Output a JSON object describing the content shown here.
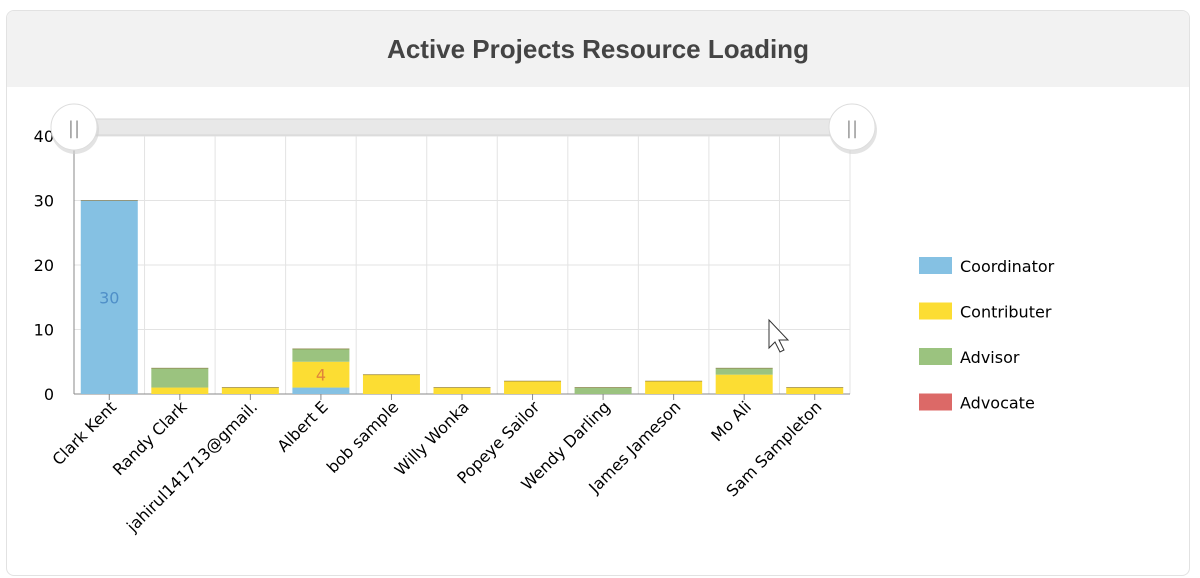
{
  "header": {
    "title": "Active Projects Resource Loading"
  },
  "colors": {
    "Coordinator": "#85c1e3",
    "Contributer": "#fcdd33",
    "Advisor": "#9bc37f",
    "Advocate": "#dc6967",
    "grid": "#e3e3e3",
    "scrollbar": "#e8e8e8"
  },
  "chart_data": {
    "type": "bar",
    "stacked": true,
    "title": "Active Projects Resource Loading",
    "xlabel": "",
    "ylabel": "",
    "ylim": [
      0,
      40
    ],
    "yticks": [
      0,
      10,
      20,
      30,
      40
    ],
    "grid": true,
    "legend_position": "right",
    "categories": [
      "Clark Kent",
      "Randy Clark",
      "jahirul141713@gmail.",
      "Albert E",
      "bob sample",
      "Willy Wonka",
      "Popeye Sailor",
      "Wendy Darling",
      "James Jameson",
      "Mo Ali",
      "Sam Sampleton"
    ],
    "series": [
      {
        "name": "Coordinator",
        "values": [
          30,
          0,
          0,
          1,
          0,
          0,
          0,
          0,
          0,
          0,
          0
        ]
      },
      {
        "name": "Contributer",
        "values": [
          0,
          1,
          1,
          4,
          3,
          1,
          2,
          0,
          2,
          3,
          1
        ]
      },
      {
        "name": "Advisor",
        "values": [
          0,
          3,
          0,
          2,
          0,
          0,
          0,
          1,
          0,
          1,
          0
        ]
      },
      {
        "name": "Advocate",
        "values": [
          0,
          0,
          0,
          0,
          0,
          0,
          0,
          0,
          0,
          0,
          0
        ]
      }
    ],
    "data_labels": [
      {
        "category": "Clark Kent",
        "series": "Coordinator",
        "text": "30"
      },
      {
        "category": "Albert E",
        "series": "Contributer",
        "text": "4"
      }
    ]
  },
  "scrollbar": {
    "left_handle_glyph": "||",
    "right_handle_glyph": "||"
  }
}
